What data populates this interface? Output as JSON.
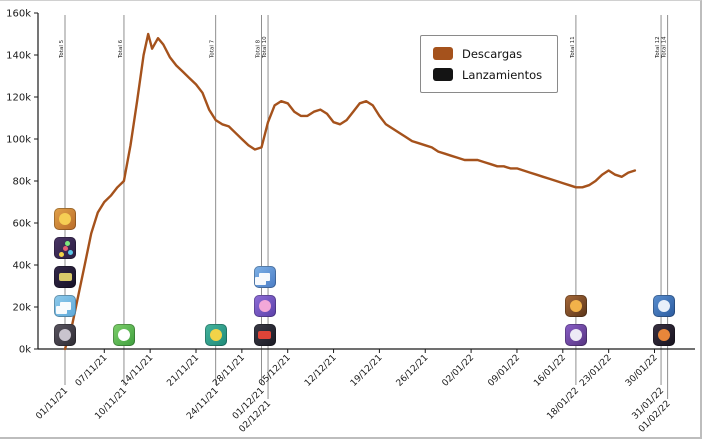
{
  "figure": {
    "background": "#ffffff",
    "axis_color": "#1a1a1a",
    "release_line_color": "#8f8f8f"
  },
  "legend": {
    "items": [
      {
        "label": "Descargas",
        "color": "#a5521c"
      },
      {
        "label": "Lanzamientos",
        "color": "#141414"
      }
    ]
  },
  "chart_data": {
    "type": "line",
    "title": "",
    "xlabel": "",
    "ylabel": "",
    "ylim": [
      0,
      160
    ],
    "y_unit": "k downloads",
    "grid": false,
    "legend_position": "top-right",
    "y_ticks": [
      "0k",
      "20k",
      "40k",
      "60k",
      "80k",
      "100k",
      "120k",
      "140k",
      "160k"
    ],
    "x_ticks": [
      {
        "day": 6,
        "label": "07/11/21"
      },
      {
        "day": 13,
        "label": "14/11/21"
      },
      {
        "day": 20,
        "label": "21/11/21"
      },
      {
        "day": 27,
        "label": "28/11/21"
      },
      {
        "day": 34,
        "label": "05/12/21"
      },
      {
        "day": 41,
        "label": "12/12/21"
      },
      {
        "day": 48,
        "label": "19/12/21"
      },
      {
        "day": 55,
        "label": "26/12/21"
      },
      {
        "day": 62,
        "label": "02/01/22"
      },
      {
        "day": 69,
        "label": "09/01/22"
      },
      {
        "day": 76,
        "label": "16/01/22"
      },
      {
        "day": 83,
        "label": "23/01/22"
      },
      {
        "day": 90,
        "label": "30/01/22"
      }
    ],
    "releases": [
      {
        "day": 0,
        "date": "01/11/21",
        "total": "Total 5",
        "label_row": 2
      },
      {
        "day": 9,
        "date": "10/11/21",
        "total": "Total 6",
        "label_row": 2
      },
      {
        "day": 23,
        "date": "24/11/21",
        "total": "Total 7",
        "label_row": 2
      },
      {
        "day": 30,
        "date": "01/12/21",
        "total": "Total 8",
        "label_row": 2
      },
      {
        "day": 31,
        "date": "02/12/21",
        "total": "Total 10",
        "label_row": 3
      },
      {
        "day": 78,
        "date": "18/01/22",
        "total": "Total 11",
        "label_row": 2
      },
      {
        "day": 91,
        "date": "31/01/22",
        "total": "Total 12",
        "label_row": 2
      },
      {
        "day": 92,
        "date": "01/02/22",
        "total": "Total 14",
        "label_row": 3
      }
    ],
    "icon_stacks": [
      {
        "day": 0,
        "icons": [
          {
            "name": "pancake-game-icon",
            "c1": "#e2a24a",
            "c2": "#b96b28",
            "shape": "circle",
            "fg": "#f6ce54"
          },
          {
            "name": "party-game-icon",
            "c1": "#4a3566",
            "c2": "#2b1e42",
            "shape": "dots",
            "fg": "#e85d75"
          },
          {
            "name": "adventure-game-icon",
            "c1": "#33294a",
            "c2": "#171126",
            "shape": "rect",
            "fg": "#d8c96a"
          },
          {
            "name": "solitaire-game-icon",
            "c1": "#8fcbec",
            "c2": "#5ea8d8",
            "shape": "cards",
            "fg": "#ffffff"
          },
          {
            "name": "battle-game-icon",
            "c1": "#5a5560",
            "c2": "#2e2b33",
            "shape": "circle",
            "fg": "#c9c4ce"
          }
        ]
      },
      {
        "day": 9,
        "icons": [
          {
            "name": "golf-game-icon",
            "c1": "#7ed06b",
            "c2": "#3e9e3e",
            "shape": "circle",
            "fg": "#ffffff"
          }
        ]
      },
      {
        "day": 23,
        "icons": [
          {
            "name": "pool-game-icon",
            "c1": "#46b49e",
            "c2": "#1e8a78",
            "shape": "circle",
            "fg": "#f2d348"
          }
        ]
      },
      {
        "day": 30.5,
        "icons": [
          {
            "name": "dice-game-icon",
            "c1": "#7fb3e8",
            "c2": "#4a7bc4",
            "shape": "cards",
            "fg": "#ffffff"
          },
          {
            "name": "unicorn-game-icon",
            "c1": "#8f6ed8",
            "c2": "#5a3fa8",
            "shape": "circle",
            "fg": "#f2a8d8"
          },
          {
            "name": "racing-game-icon",
            "c1": "#3a3a46",
            "c2": "#1a1a24",
            "shape": "rect",
            "fg": "#e04438"
          }
        ]
      },
      {
        "day": 78,
        "icons": [
          {
            "name": "warrior-game-icon",
            "c1": "#a86a3a",
            "c2": "#5a3418",
            "shape": "circle",
            "fg": "#f2b24a"
          },
          {
            "name": "music-game-icon",
            "c1": "#8a5fc8",
            "c2": "#55337e",
            "shape": "circle",
            "fg": "#edeaf5"
          }
        ]
      },
      {
        "day": 91.5,
        "icons": [
          {
            "name": "bird-game-icon",
            "c1": "#5a8fd0",
            "c2": "#2a5a9e",
            "shape": "circle",
            "fg": "#e8f0fa"
          },
          {
            "name": "ninja-game-icon",
            "c1": "#3a3142",
            "c2": "#16121e",
            "shape": "circle",
            "fg": "#e8863a"
          }
        ]
      }
    ],
    "series": [
      {
        "name": "Descargas",
        "color": "#a5521c",
        "x_unit": "days since 01/11/21",
        "points": [
          [
            0,
            0
          ],
          [
            1,
            10
          ],
          [
            2,
            25
          ],
          [
            3,
            40
          ],
          [
            4,
            55
          ],
          [
            5,
            65
          ],
          [
            6,
            70
          ],
          [
            7,
            73
          ],
          [
            8,
            77
          ],
          [
            9,
            80
          ],
          [
            10,
            97
          ],
          [
            11,
            118
          ],
          [
            12,
            140
          ],
          [
            12.7,
            150
          ],
          [
            13.3,
            143
          ],
          [
            14.2,
            148
          ],
          [
            15,
            145
          ],
          [
            16,
            139
          ],
          [
            17,
            135
          ],
          [
            18,
            132
          ],
          [
            19,
            129
          ],
          [
            20,
            126
          ],
          [
            21,
            122
          ],
          [
            22,
            114
          ],
          [
            23,
            109
          ],
          [
            24,
            107
          ],
          [
            25,
            106
          ],
          [
            26,
            103
          ],
          [
            27,
            100
          ],
          [
            28,
            97
          ],
          [
            29,
            95
          ],
          [
            30,
            96
          ],
          [
            31,
            108
          ],
          [
            32,
            116
          ],
          [
            33,
            118
          ],
          [
            34,
            117
          ],
          [
            35,
            113
          ],
          [
            36,
            111
          ],
          [
            37,
            111
          ],
          [
            38,
            113
          ],
          [
            39,
            114
          ],
          [
            40,
            112
          ],
          [
            41,
            108
          ],
          [
            42,
            107
          ],
          [
            43,
            109
          ],
          [
            44,
            113
          ],
          [
            45,
            117
          ],
          [
            46,
            118
          ],
          [
            47,
            116
          ],
          [
            48,
            111
          ],
          [
            49,
            107
          ],
          [
            50,
            105
          ],
          [
            51,
            103
          ],
          [
            52,
            101
          ],
          [
            53,
            99
          ],
          [
            54,
            98
          ],
          [
            55,
            97
          ],
          [
            56,
            96
          ],
          [
            57,
            94
          ],
          [
            58,
            93
          ],
          [
            59,
            92
          ],
          [
            60,
            91
          ],
          [
            61,
            90
          ],
          [
            62,
            90
          ],
          [
            63,
            90
          ],
          [
            64,
            89
          ],
          [
            65,
            88
          ],
          [
            66,
            87
          ],
          [
            67,
            87
          ],
          [
            68,
            86
          ],
          [
            69,
            86
          ],
          [
            70,
            85
          ],
          [
            71,
            84
          ],
          [
            72,
            83
          ],
          [
            73,
            82
          ],
          [
            74,
            81
          ],
          [
            75,
            80
          ],
          [
            76,
            79
          ],
          [
            77,
            78
          ],
          [
            78,
            77
          ],
          [
            79,
            77
          ],
          [
            80,
            78
          ],
          [
            81,
            80
          ],
          [
            82,
            83
          ],
          [
            83,
            85
          ],
          [
            84,
            83
          ],
          [
            85,
            82
          ],
          [
            86,
            84
          ],
          [
            87,
            85
          ]
        ]
      }
    ]
  }
}
